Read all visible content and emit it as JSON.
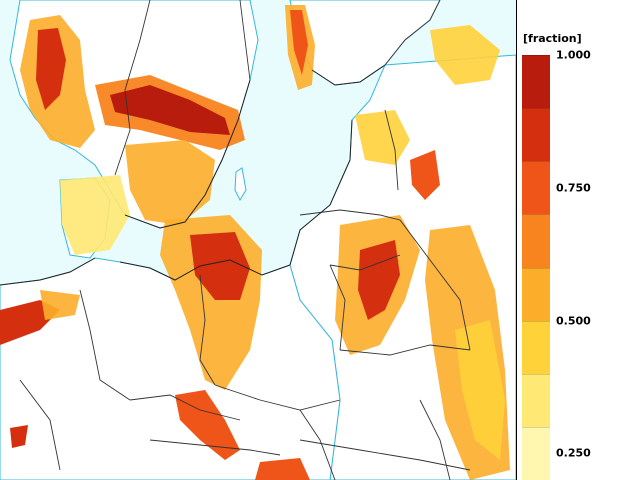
{
  "legend": {
    "unit_label": "[fraction]",
    "ticks": [
      "1.000",
      "0.750",
      "0.500",
      "0.250"
    ],
    "tick_values": [
      1.0,
      0.75,
      0.5,
      0.25
    ],
    "steps": [
      {
        "from": 0.9,
        "to": 1.0,
        "color": "#b71c0c"
      },
      {
        "from": 0.8,
        "to": 0.9,
        "color": "#d43010"
      },
      {
        "from": 0.7,
        "to": 0.8,
        "color": "#ef5418"
      },
      {
        "from": 0.6,
        "to": 0.7,
        "color": "#f8841f"
      },
      {
        "from": 0.5,
        "to": 0.6,
        "color": "#fcae2a"
      },
      {
        "from": 0.4,
        "to": 0.5,
        "color": "#ffd23a"
      },
      {
        "from": 0.3,
        "to": 0.4,
        "color": "#ffe873"
      },
      {
        "from": 0.2,
        "to": 0.3,
        "color": "#fff7b0"
      }
    ]
  },
  "map": {
    "sea_color": "#e8fcfd",
    "land_color": "#ffffff",
    "border_color": "#333333",
    "isoline_color": "#33b8dd"
  }
}
